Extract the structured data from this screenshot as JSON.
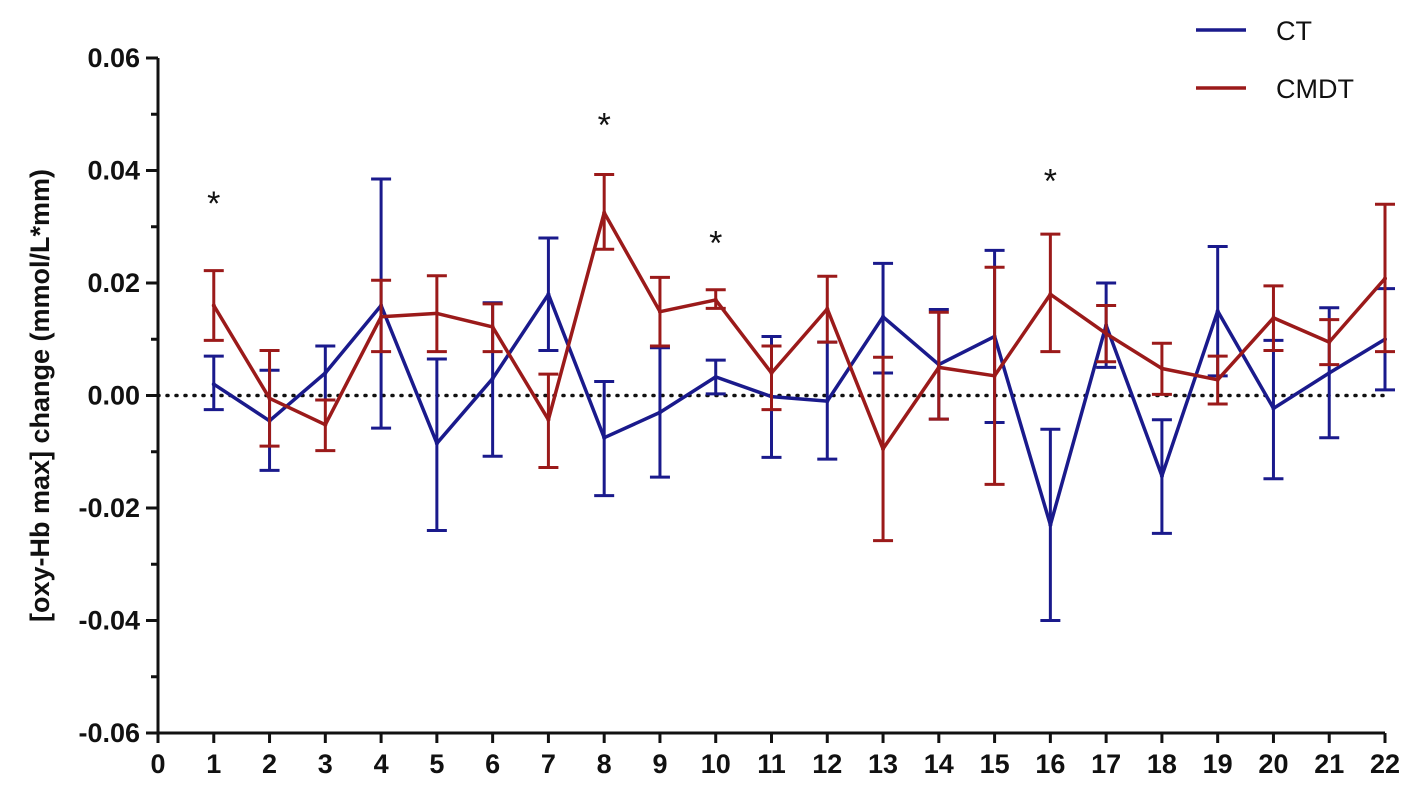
{
  "chart_data": {
    "type": "line",
    "title": "",
    "xlabel": "",
    "ylabel": "[oxy-Hb max] change (mmol/L*mm)",
    "xlim": [
      0,
      22
    ],
    "ylim": [
      -0.06,
      0.06
    ],
    "x_ticks": [
      "0",
      "1",
      "2",
      "3",
      "4",
      "5",
      "6",
      "7",
      "8",
      "9",
      "10",
      "11",
      "12",
      "13",
      "14",
      "15",
      "16",
      "17",
      "18",
      "19",
      "20",
      "21",
      "22"
    ],
    "y_ticks": [
      "0.06",
      "0.04",
      "0.02",
      "0.00",
      "-0.02",
      "-0.04",
      "-0.06"
    ],
    "y_tick_values": [
      0.06,
      0.04,
      0.02,
      0.0,
      -0.02,
      -0.04,
      -0.06
    ],
    "reference_line": {
      "y": 0,
      "style": "dotted"
    },
    "legend_position": "top-right",
    "grid": false,
    "x": [
      1,
      2,
      3,
      4,
      5,
      6,
      7,
      8,
      9,
      10,
      11,
      12,
      13,
      14,
      15,
      16,
      17,
      18,
      19,
      20,
      21,
      22
    ],
    "series": [
      {
        "name": "CT",
        "color": "#1a1a8c",
        "values": [
          0.002,
          -0.0045,
          0.004,
          0.016,
          -0.0085,
          0.003,
          0.018,
          -0.0075,
          -0.003,
          0.0033,
          -0.0002,
          -0.001,
          0.014,
          0.0055,
          0.0105,
          -0.023,
          0.0125,
          -0.0143,
          0.015,
          -0.0023,
          0.004,
          0.01
        ],
        "err_high": [
          0.007,
          0.0045,
          0.0088,
          0.0385,
          0.0065,
          0.0165,
          0.028,
          0.0025,
          0.0085,
          0.0063,
          0.0105,
          0.0095,
          0.0235,
          0.0153,
          0.0258,
          -0.006,
          0.02,
          -0.0043,
          0.0265,
          0.0098,
          0.0156,
          0.019
        ],
        "err_low": [
          -0.0025,
          -0.0133,
          -0.0008,
          -0.0058,
          -0.024,
          -0.0108,
          0.008,
          -0.0178,
          -0.0145,
          0.0003,
          -0.011,
          -0.0113,
          0.004,
          -0.0042,
          -0.0048,
          -0.04,
          0.005,
          -0.0245,
          0.0035,
          -0.0148,
          -0.0075,
          0.001
        ]
      },
      {
        "name": "CMDT",
        "color": "#9b1a1a",
        "values": [
          0.016,
          -0.0005,
          -0.0052,
          0.014,
          0.0146,
          0.0122,
          -0.0043,
          0.0325,
          0.0149,
          0.017,
          0.004,
          0.0154,
          -0.0095,
          0.005,
          0.0035,
          0.018,
          0.011,
          0.0048,
          0.0028,
          0.0138,
          0.0095,
          0.0208
        ],
        "err_high": [
          0.0222,
          0.008,
          -0.0008,
          0.0205,
          0.0213,
          0.0163,
          0.0038,
          0.0393,
          0.021,
          0.0188,
          0.0088,
          0.0212,
          0.0068,
          0.0148,
          0.0228,
          0.0287,
          0.016,
          0.0093,
          0.007,
          0.0195,
          0.0135,
          0.034
        ],
        "err_low": [
          0.0098,
          -0.009,
          -0.0098,
          0.0078,
          0.0078,
          0.0078,
          -0.0128,
          0.026,
          0.0088,
          0.0155,
          -0.0025,
          0.0095,
          -0.0258,
          -0.0042,
          -0.0158,
          0.0078,
          0.006,
          0.0002,
          -0.0015,
          0.008,
          0.0055,
          0.0078
        ]
      }
    ],
    "annotations": [
      {
        "text": "*",
        "x": 1,
        "y": 0.036
      },
      {
        "text": "*",
        "x": 8,
        "y": 0.05
      },
      {
        "text": "*",
        "x": 10,
        "y": 0.029
      },
      {
        "text": "*",
        "x": 16,
        "y": 0.04
      }
    ]
  }
}
